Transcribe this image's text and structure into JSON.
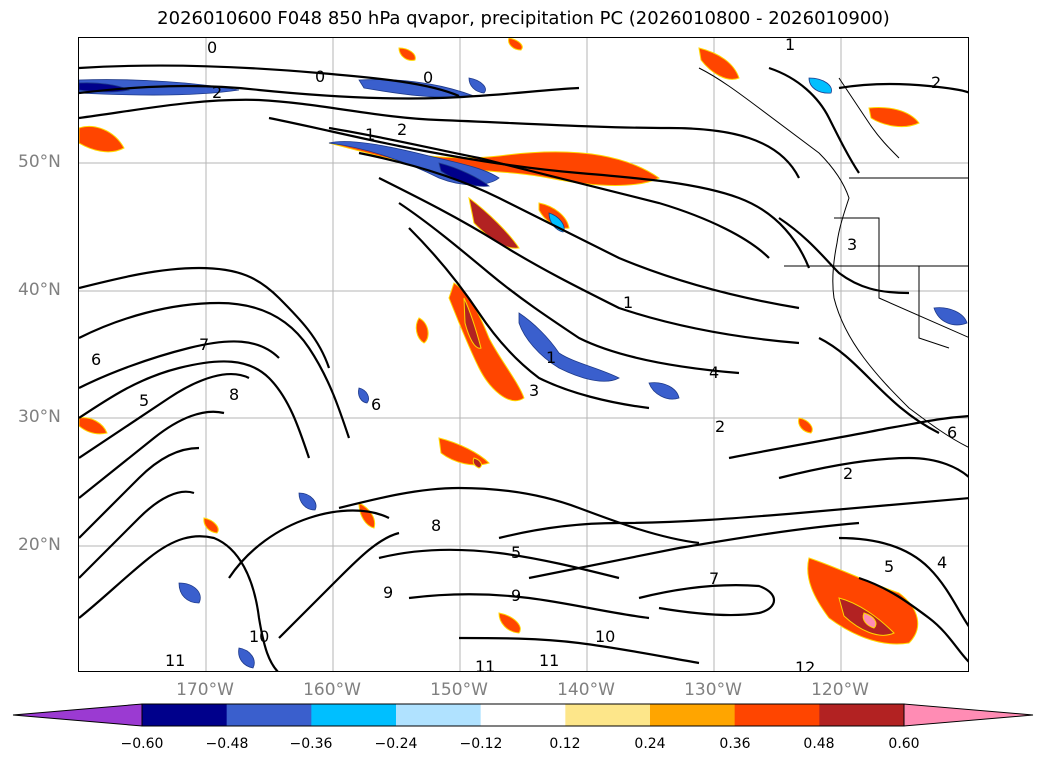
{
  "title": "2026010600 F048 850 hPa qvapor, precipitation PC (2026010800 - 2026010900)",
  "lat_labels": [
    "50°N",
    "40°N",
    "30°N",
    "20°N"
  ],
  "lon_labels": [
    "170°W",
    "160°W",
    "150°W",
    "140°W",
    "130°W",
    "120°W"
  ],
  "colorbar": {
    "ticks": [
      "−0.60",
      "−0.48",
      "−0.36",
      "−0.24",
      "−0.12",
      "0.12",
      "0.24",
      "0.36",
      "0.48",
      "0.60"
    ],
    "colors": [
      "#9b3ad2",
      "#00008b",
      "#3a5fcd",
      "#00bfff",
      "#b0e2ff",
      "#ffffff",
      "#fde68a",
      "#ffa500",
      "#ff4500",
      "#b22222",
      "#ff8cb4"
    ]
  },
  "contour_labels": [
    "0",
    "0",
    "0",
    "2",
    "1",
    "2",
    "1",
    "2",
    "1",
    "1",
    "4",
    "2",
    "3",
    "2",
    "6",
    "5",
    "7",
    "8",
    "8",
    "9",
    "9",
    "10",
    "11",
    "11",
    "11",
    "12",
    "7",
    "6",
    "5",
    "4",
    "10",
    "6",
    "5",
    "3"
  ],
  "colors": {
    "positive_strong": "#b22222",
    "positive_mid": "#ff4500",
    "positive_weak": "#ffa500",
    "negative_strong": "#00008b",
    "negative_mid": "#3a5fcd",
    "negative_weak": "#00bfff"
  }
}
